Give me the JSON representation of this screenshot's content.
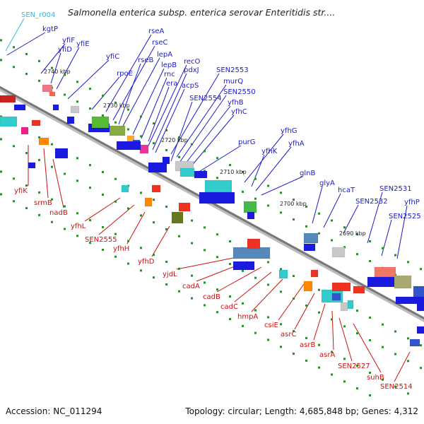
{
  "title": "Salmonella enterica subsp. enterica serovar Enteritidis str....",
  "footer": {
    "accession": "Accession: NC_011294",
    "topology": "Topology: circular; Length: 4,685,848 bp; Genes: 4,312"
  },
  "colors": {
    "top_label": "#1a1acc",
    "bottom_label": "#cc1111",
    "highlight_label": "#33bbdd",
    "backbone": "#777777",
    "tick": "#2d8a2d"
  },
  "scale_labels": [
    "2740 kbp",
    "2730 kbp",
    "2720 kbp",
    "2710 kbp",
    "2700 kbp",
    "2690 kbp"
  ],
  "genes_top": [
    "SEN_r004",
    "kgtP",
    "yfiF",
    "yfiD",
    "yfiE",
    "yfiC",
    "rpoE",
    "rseA",
    "rseC",
    "rseB",
    "lepA",
    "lepB",
    "rnc",
    "era",
    "recO",
    "pdxJ",
    "acpS",
    "SEN2553",
    "murQ",
    "SEN2554",
    "SEN2550",
    "yfhB",
    "yfhC",
    "purG",
    "yfhG",
    "yfhK",
    "yfhA",
    "glnB",
    "glyA",
    "hcaT",
    "SEN2532",
    "SEN2531",
    "SEN2525",
    "yfhP"
  ],
  "genes_bottom": [
    "yfiK",
    "srmB",
    "nadB",
    "yfhL",
    "SEN2555",
    "yfhH",
    "yfhD",
    "yjdL",
    "cadA",
    "cadB",
    "cadC",
    "hmpA",
    "csiE",
    "asrC",
    "asrB",
    "asrA",
    "SEN2527",
    "suhB",
    "SEN2514"
  ]
}
